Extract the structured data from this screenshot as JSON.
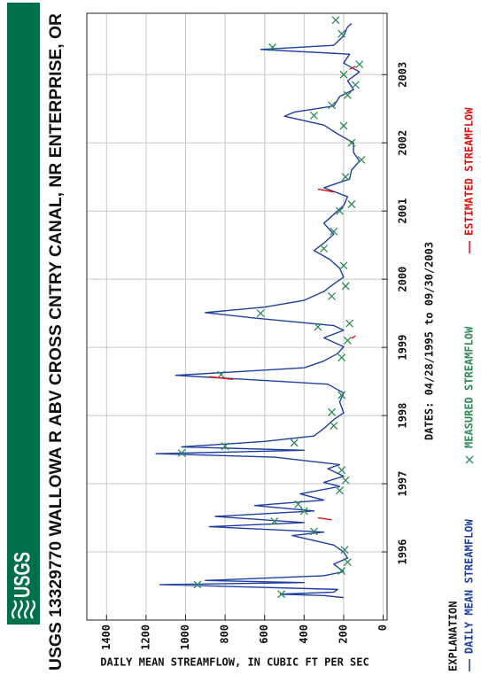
{
  "chart_data": {
    "type": "line",
    "logo": "USGS",
    "title": "USGS 13329770 WALLOWA R ABV CROSS CNTRY CANAL, NR ENTERPRISE, OR",
    "y_label": "DAILY MEAN STREAMFLOW, IN CUBIC FT PER SEC",
    "x_label": "DATES: 04/28/1995 to 09/30/2003",
    "legend_title": "EXPLANATION",
    "xlim": [
      1995.0,
      2003.9
    ],
    "xticks": [
      1996,
      1997,
      1998,
      1999,
      2000,
      2001,
      2002,
      2003
    ],
    "ylim": [
      -20,
      1500
    ],
    "yticks": [
      0,
      200,
      400,
      600,
      800,
      1000,
      1200,
      1400
    ],
    "grid": true,
    "series": [
      {
        "name": "DAILY MEAN STREAMFLOW",
        "type": "line",
        "color": "#1f3f9f",
        "x": [
          1995.33,
          1995.36,
          1995.38,
          1995.41,
          1995.45,
          1995.52,
          1995.55,
          1995.58,
          1995.65,
          1995.71,
          1995.82,
          1995.91,
          1996.0,
          1996.1,
          1996.24,
          1996.29,
          1996.37,
          1996.43,
          1996.52,
          1996.6,
          1996.68,
          1996.76,
          1996.85,
          1996.96,
          1997.02,
          1997.11,
          1997.22,
          1997.28,
          1997.39,
          1997.44,
          1997.49,
          1997.54,
          1997.62,
          1997.7,
          1997.81,
          1997.94,
          1998.04,
          1998.2,
          1998.33,
          1998.46,
          1998.59,
          1998.7,
          1998.8,
          1998.91,
          1999.01,
          1999.14,
          1999.25,
          1999.32,
          1999.43,
          1999.51,
          1999.59,
          1999.69,
          1999.82,
          1999.93,
          2000.03,
          2000.16,
          2000.29,
          2000.42,
          2000.53,
          2000.66,
          2000.82,
          2000.95,
          2001.08,
          2001.21,
          2001.34,
          2001.47,
          2001.6,
          2001.73,
          2001.86,
          2002.0,
          2002.13,
          2002.26,
          2002.39,
          2002.45,
          2002.54,
          2002.68,
          2002.78,
          2002.91,
          2003.04,
          2003.17,
          2003.3,
          2003.37,
          2003.43,
          2003.57,
          2003.7,
          2003.75
        ],
        "values": [
          200,
          300,
          520,
          250,
          230,
          1130,
          400,
          900,
          300,
          200,
          250,
          180,
          200,
          250,
          460,
          300,
          880,
          400,
          850,
          350,
          650,
          300,
          420,
          220,
          300,
          200,
          280,
          220,
          550,
          1150,
          400,
          1020,
          600,
          350,
          300,
          250,
          200,
          220,
          200,
          280,
          1050,
          400,
          300,
          230,
          200,
          300,
          200,
          250,
          650,
          900,
          600,
          400,
          300,
          250,
          200,
          220,
          270,
          350,
          300,
          250,
          300,
          250,
          200,
          180,
          300,
          170,
          160,
          120,
          150,
          150,
          230,
          300,
          500,
          450,
          250,
          220,
          150,
          180,
          120,
          200,
          170,
          620,
          250,
          200,
          180,
          160
        ]
      },
      {
        "name": "MEASURED STREAMFLOW",
        "type": "scatter",
        "color": "#2e8b57",
        "x": [
          1995.38,
          1995.52,
          1995.72,
          1995.85,
          1996.03,
          1996.3,
          1996.45,
          1996.6,
          1996.7,
          1996.9,
          1997.05,
          1997.2,
          1997.45,
          1997.55,
          1997.6,
          1997.85,
          1998.05,
          1998.3,
          1998.6,
          1998.85,
          1999.1,
          1999.3,
          1999.35,
          1999.5,
          1999.75,
          1999.9,
          2000.2,
          2000.45,
          2000.7,
          2001.0,
          2001.1,
          2001.5,
          2001.75,
          2002.0,
          2002.25,
          2002.4,
          2002.55,
          2002.7,
          2002.85,
          2003.0,
          2003.15,
          2003.4,
          2003.6,
          2003.8
        ],
        "values": [
          515,
          940,
          210,
          180,
          195,
          350,
          550,
          400,
          430,
          220,
          190,
          210,
          1020,
          800,
          450,
          250,
          260,
          210,
          820,
          210,
          180,
          330,
          170,
          620,
          260,
          190,
          200,
          300,
          250,
          220,
          160,
          190,
          110,
          160,
          200,
          350,
          260,
          180,
          140,
          200,
          120,
          560,
          210,
          240
        ]
      },
      {
        "name": "ESTIMATED STREAMFLOW",
        "type": "line",
        "color": "#e01010",
        "x": [
          1996.47,
          1996.5,
          1996.6,
          1998.53,
          1998.57,
          1998.7,
          1999.13,
          1999.17,
          1999.3,
          2001.28,
          2001.32,
          2001.5,
          2003.08,
          2003.12
        ],
        "values": [
          260,
          330,
          null,
          760,
          880,
          null,
          160,
          140,
          null,
          250,
          330,
          null,
          170,
          140
        ]
      }
    ]
  }
}
